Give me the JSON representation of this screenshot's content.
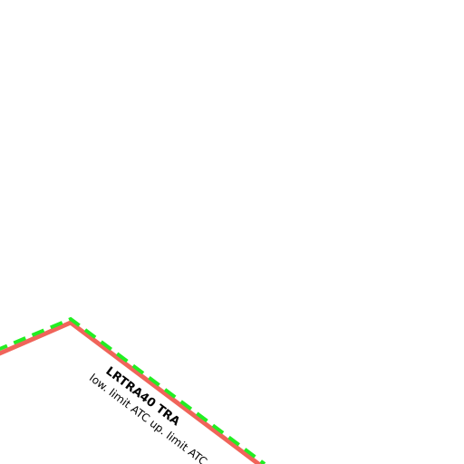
{
  "map": {
    "background_color": "#ffffff",
    "airspace_zone": {
      "name": "LRTRA40 TRA",
      "limits_text": "low. limit ATC up. limit ATC",
      "boundary_color": "#f0645a",
      "overlay_dash_color": "#22ee22"
    }
  }
}
